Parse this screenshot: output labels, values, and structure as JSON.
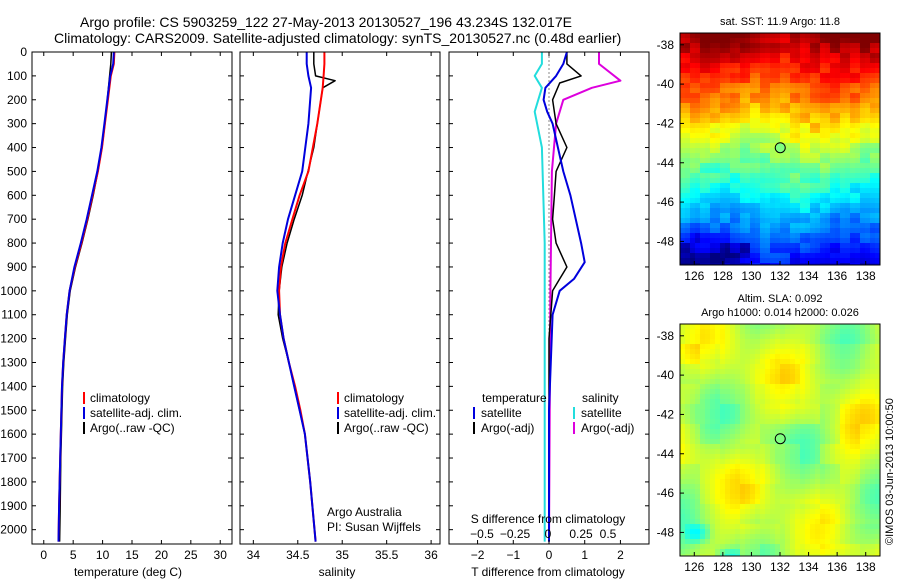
{
  "title_line1": "Argo profile: CS 5903259_122 27-May-2013 20130527_196 43.234S 132.017E",
  "title_line2": "Climatology: CARS2009. Satellite-adjusted climatology: synTS_20130527.nc (0.48d earlier)",
  "colors": {
    "climatology": "#ff0000",
    "satellite": "#0000dd",
    "argo": "#000000",
    "sat_salinity": "#22dddd",
    "argo_salinity": "#dd00dd"
  },
  "depth_axis": {
    "ticks": [
      0,
      100,
      200,
      300,
      400,
      500,
      600,
      700,
      800,
      900,
      1000,
      1100,
      1200,
      1300,
      1400,
      1500,
      1600,
      1700,
      1800,
      1900,
      2000
    ],
    "range": [
      0,
      2060
    ]
  },
  "temperature_panel": {
    "xlabel": "temperature (deg C)",
    "xticks": [
      0,
      5,
      10,
      15,
      20,
      25,
      30
    ],
    "xrange": [
      -2,
      32
    ],
    "legend": [
      "climatology",
      "satellite-adj. clim.",
      "Argo(..raw -QC)"
    ]
  },
  "salinity_panel": {
    "xlabel": "salinity",
    "xticks": [
      34,
      34.5,
      35,
      35.5,
      36
    ],
    "xrange": [
      33.85,
      36.1
    ],
    "legend": [
      "climatology",
      "satellite-adj. clim.",
      "Argo(..raw -QC)"
    ],
    "credit_line1": "Argo Australia",
    "credit_line2": "PI: Susan Wijffels"
  },
  "difference_panel": {
    "xlabel": "T difference from climatology",
    "xticks": [
      -2,
      -1,
      0,
      1,
      2
    ],
    "xticklabels": [
      "−2",
      "−1",
      "0",
      "1",
      "2"
    ],
    "xrange": [
      -2.8,
      2.8
    ],
    "s_label": "S difference from climatology",
    "s_ticks": [
      "−0.5",
      "−0.25",
      "0",
      "0.25",
      "0.5"
    ],
    "legend_temperature": "temperature",
    "legend_salinity": "salinity",
    "legend_sat": "satellite",
    "legend_argo": "Argo(-adj)"
  },
  "sst_map": {
    "title": "sat. SST: 11.9 Argo: 11.8",
    "lat_ticks": [
      -38,
      -40,
      -42,
      -44,
      -46,
      -48
    ],
    "lon_ticks": [
      126,
      128,
      130,
      132,
      134,
      136,
      138
    ],
    "lat_range": [
      -49.2,
      -37.4
    ],
    "lon_range": [
      125.0,
      139.0
    ],
    "float_lat": -43.234,
    "float_lon": 132.017
  },
  "sla_map": {
    "title_line1": "Altim. SLA: 0.092",
    "title_line2": "Argo h1000: 0.014 h2000: 0.026",
    "lat_ticks": [
      -38,
      -40,
      -42,
      -44,
      -46,
      -48
    ],
    "lon_ticks": [
      126,
      128,
      130,
      132,
      134,
      136,
      138
    ],
    "lat_range": [
      -49.2,
      -37.4
    ],
    "lon_range": [
      125.0,
      139.0
    ],
    "float_lat": -43.234,
    "float_lon": 132.017
  },
  "side_stamp": "©IMOS 03-Jun-2013 10:00:50",
  "chart_data": [
    {
      "type": "line",
      "title": "temperature profile",
      "xlabel": "temperature (deg C)",
      "ylabel": "depth",
      "xlim": [
        -2,
        32
      ],
      "ylim": [
        2060,
        0
      ],
      "series": [
        {
          "name": "climatology",
          "x": [
            11.5,
            11.4,
            11.2,
            10.8,
            10.4,
            9.9,
            9.2,
            8.4,
            7.5,
            6.5,
            5.4,
            4.5,
            4.0,
            3.7,
            3.4,
            3.2,
            3.1,
            3.0,
            2.9,
            2.8,
            2.7
          ],
          "depth": [
            0,
            50,
            100,
            200,
            300,
            400,
            500,
            600,
            700,
            800,
            900,
            1000,
            1100,
            1200,
            1300,
            1400,
            1500,
            1600,
            1700,
            1900,
            2050
          ]
        },
        {
          "name": "satellite-adj. clim.",
          "x": [
            12.0,
            11.9,
            11.4,
            10.9,
            10.4,
            9.9,
            9.2,
            8.3,
            7.4,
            6.4,
            5.3,
            4.4,
            3.9,
            3.6,
            3.3,
            3.1,
            3.0,
            2.9,
            2.8,
            2.6,
            2.5
          ],
          "depth": [
            0,
            50,
            100,
            200,
            300,
            400,
            500,
            600,
            700,
            800,
            900,
            1000,
            1100,
            1200,
            1300,
            1400,
            1500,
            1600,
            1700,
            1900,
            2050
          ]
        },
        {
          "name": "Argo(..raw -QC)",
          "x": [
            11.9,
            11.8,
            11.3,
            10.8,
            10.3,
            9.8,
            9.1,
            8.2,
            7.3,
            6.3,
            5.2,
            4.4,
            3.9,
            3.6,
            3.3,
            3.1,
            3.0,
            2.9,
            2.8,
            2.6,
            2.5
          ],
          "depth": [
            0,
            50,
            100,
            200,
            300,
            400,
            500,
            600,
            700,
            800,
            900,
            1000,
            1100,
            1200,
            1300,
            1400,
            1500,
            1600,
            1700,
            1900,
            2050
          ]
        }
      ]
    },
    {
      "type": "line",
      "title": "salinity profile",
      "xlabel": "salinity",
      "ylabel": "depth",
      "xlim": [
        33.85,
        36.1
      ],
      "ylim": [
        2060,
        0
      ],
      "series": [
        {
          "name": "climatology",
          "x": [
            34.8,
            34.8,
            34.79,
            34.78,
            34.72,
            34.62,
            34.52,
            34.44,
            34.36,
            34.31,
            34.29,
            34.3,
            34.34,
            34.4,
            34.47,
            34.53,
            34.58,
            34.64,
            34.7
          ],
          "depth": [
            0,
            50,
            100,
            150,
            300,
            500,
            600,
            700,
            800,
            900,
            1000,
            1100,
            1200,
            1300,
            1400,
            1500,
            1600,
            1800,
            2050
          ]
        },
        {
          "name": "satellite-adj. clim.",
          "x": [
            34.6,
            34.6,
            34.62,
            34.65,
            34.62,
            34.55,
            34.47,
            34.39,
            34.33,
            34.29,
            34.27,
            34.3,
            34.34,
            34.4,
            34.46,
            34.52,
            34.58,
            34.64,
            34.7
          ],
          "depth": [
            0,
            50,
            100,
            150,
            300,
            500,
            600,
            700,
            800,
            900,
            1000,
            1100,
            1200,
            1300,
            1400,
            1500,
            1600,
            1800,
            2050
          ]
        },
        {
          "name": "Argo(..raw -QC)",
          "x": [
            34.68,
            34.68,
            34.7,
            34.92,
            34.78,
            34.72,
            34.68,
            34.55,
            34.46,
            34.38,
            34.32,
            34.29,
            34.28,
            34.33,
            34.4,
            34.46,
            34.52,
            34.58,
            34.64,
            34.7
          ],
          "depth": [
            0,
            50,
            100,
            120,
            150,
            300,
            400,
            600,
            700,
            800,
            900,
            1000,
            1100,
            1200,
            1300,
            1400,
            1500,
            1600,
            1800,
            2050
          ]
        }
      ]
    },
    {
      "type": "line",
      "title": "difference from climatology",
      "xlabel": "T difference from climatology",
      "ylabel": "depth",
      "xlim": [
        -2.8,
        2.8
      ],
      "ylim": [
        2060,
        0
      ],
      "series": [
        {
          "name": "temperature satellite",
          "x": [
            0.5,
            0.4,
            0.2,
            -0.1,
            -0.15,
            -0.05,
            0.1,
            0.25,
            0.4,
            0.6,
            0.9,
            1.0,
            0.7,
            0.3,
            0.1,
            0.05,
            0.0,
            0.0,
            0.0
          ],
          "depth": [
            0,
            50,
            100,
            150,
            200,
            250,
            300,
            400,
            500,
            600,
            800,
            880,
            950,
            1000,
            1100,
            1300,
            1500,
            1800,
            2050
          ]
        },
        {
          "name": "temperature Argo(-adj)",
          "x": [
            0.5,
            0.5,
            0.9,
            0.3,
            0.1,
            0.2,
            0.5,
            0.2,
            0.15,
            0.1,
            0.2,
            0.5,
            0.3,
            0.1,
            0.0,
            0.0,
            0.0
          ],
          "depth": [
            0,
            50,
            100,
            130,
            200,
            300,
            400,
            500,
            600,
            700,
            800,
            900,
            950,
            1000,
            1200,
            1600,
            2050
          ]
        },
        {
          "name": "salinity satellite",
          "x": [
            -0.05,
            -0.05,
            -0.1,
            -0.05,
            -0.1,
            -0.05,
            -0.03,
            -0.03,
            -0.03
          ],
          "depth": [
            0,
            50,
            100,
            150,
            250,
            400,
            800,
            1400,
            2050
          ]
        },
        {
          "name": "salinity Argo(-adj)",
          "x": [
            0.35,
            0.35,
            0.5,
            0.3,
            0.1,
            0.05,
            0.02,
            0.01,
            0.0
          ],
          "depth": [
            0,
            50,
            120,
            150,
            200,
            300,
            500,
            1000,
            2050
          ]
        }
      ]
    }
  ]
}
